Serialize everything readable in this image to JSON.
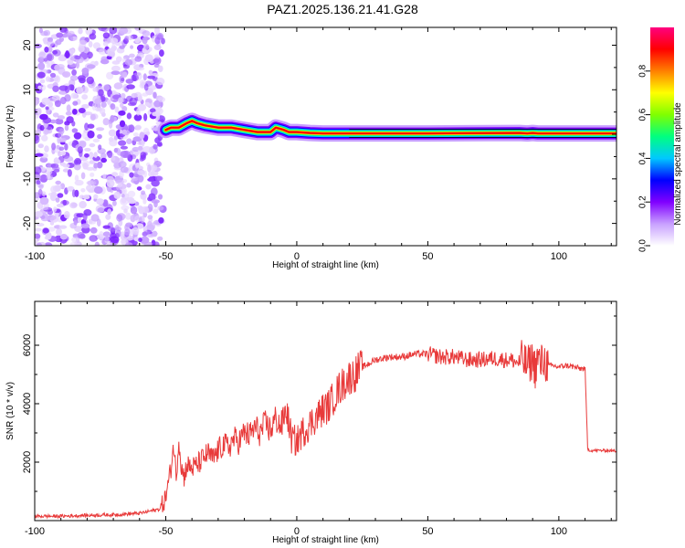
{
  "figure_title": "PAZ1.2025.136.21.41.G28",
  "chart_data": [
    {
      "type": "heatmap",
      "title": "",
      "xlabel": "Height of straight line (km)",
      "ylabel": "Frequency (Hz)",
      "xlim": [
        -100,
        122
      ],
      "ylim": [
        -25,
        24
      ],
      "xticks": [
        -100,
        -50,
        0,
        50,
        100
      ],
      "yticks": [
        -20,
        -10,
        0,
        10,
        20
      ],
      "colorbar": {
        "label": "Normalized spectral amplitude",
        "range": [
          0,
          1
        ],
        "ticks": [
          0.0,
          0.2,
          0.4,
          0.6,
          0.8
        ],
        "colors": [
          "#ffffff",
          "#c8a0ff",
          "#8000ff",
          "#0000ff",
          "#00c8ff",
          "#00ff80",
          "#80ff00",
          "#ffff00",
          "#ff8000",
          "#ff0000",
          "#ff0080"
        ]
      },
      "noise_region": {
        "x_start": -100,
        "x_end": -51,
        "freq_range": [
          -25,
          24
        ]
      },
      "signal_track": {
        "x": [
          -50,
          -48,
          -45,
          -42,
          -40,
          -38,
          -35,
          -30,
          -25,
          -20,
          -15,
          -10,
          -8,
          -5,
          -3,
          0,
          5,
          10,
          20,
          50,
          85,
          88,
          90,
          92,
          95,
          122
        ],
        "freq": [
          1.0,
          1.5,
          1.5,
          2.5,
          3.0,
          2.5,
          2.0,
          1.5,
          1.5,
          1.0,
          0.5,
          0.5,
          1.5,
          1.0,
          0.5,
          0.5,
          0.3,
          0.2,
          0.2,
          0.2,
          0.3,
          0.2,
          0.3,
          0.2,
          0.2,
          0.2
        ]
      }
    },
    {
      "type": "line",
      "title": "",
      "xlabel": "Height of straight line (km)",
      "ylabel": "SNR (10 * v/v)",
      "xlim": [
        -100,
        122
      ],
      "ylim": [
        0,
        7500
      ],
      "xticks": [
        -100,
        -50,
        0,
        50,
        100
      ],
      "yticks": [
        2000,
        4000,
        6000
      ],
      "color": "#e83a3a",
      "series": [
        {
          "x": [
            -100,
            -90,
            -80,
            -70,
            -60,
            -52,
            -50,
            -48,
            -47,
            -46,
            -45,
            -44,
            -43,
            -42,
            -40,
            -38,
            -36,
            -34,
            -32,
            -30,
            -28,
            -26,
            -24,
            -22,
            -20,
            -18,
            -16,
            -14,
            -12,
            -10,
            -8,
            -6,
            -4,
            -2,
            0,
            2,
            4,
            6,
            8,
            10,
            12,
            14,
            16,
            18,
            20,
            22,
            24,
            26,
            28,
            30,
            35,
            40,
            45,
            50,
            55,
            60,
            65,
            70,
            75,
            80,
            82,
            84,
            86,
            88,
            90,
            91,
            92,
            93,
            94,
            95,
            96,
            98,
            100,
            102,
            104,
            106,
            108,
            109,
            110,
            111,
            112,
            115,
            118,
            122
          ],
          "y": [
            150,
            150,
            180,
            200,
            250,
            400,
            800,
            1800,
            2600,
            1500,
            2800,
            1800,
            1500,
            1900,
            1800,
            1900,
            2100,
            2300,
            2100,
            2400,
            2600,
            2500,
            2800,
            2700,
            3000,
            2900,
            3200,
            3000,
            3300,
            3100,
            3500,
            3200,
            3800,
            2800,
            2700,
            3000,
            3200,
            3400,
            3600,
            3800,
            3900,
            4200,
            4500,
            4700,
            4900,
            5000,
            5200,
            5300,
            5400,
            5500,
            5600,
            5600,
            5700,
            5700,
            5600,
            5600,
            5500,
            5500,
            5550,
            5500,
            5500,
            5400,
            5500,
            5300,
            5500,
            5200,
            5600,
            5300,
            5500,
            5400,
            5300,
            5300,
            5250,
            5300,
            5300,
            5250,
            5200,
            5200,
            5200,
            2450,
            2400,
            2400,
            2400,
            2380
          ]
        }
      ]
    }
  ]
}
